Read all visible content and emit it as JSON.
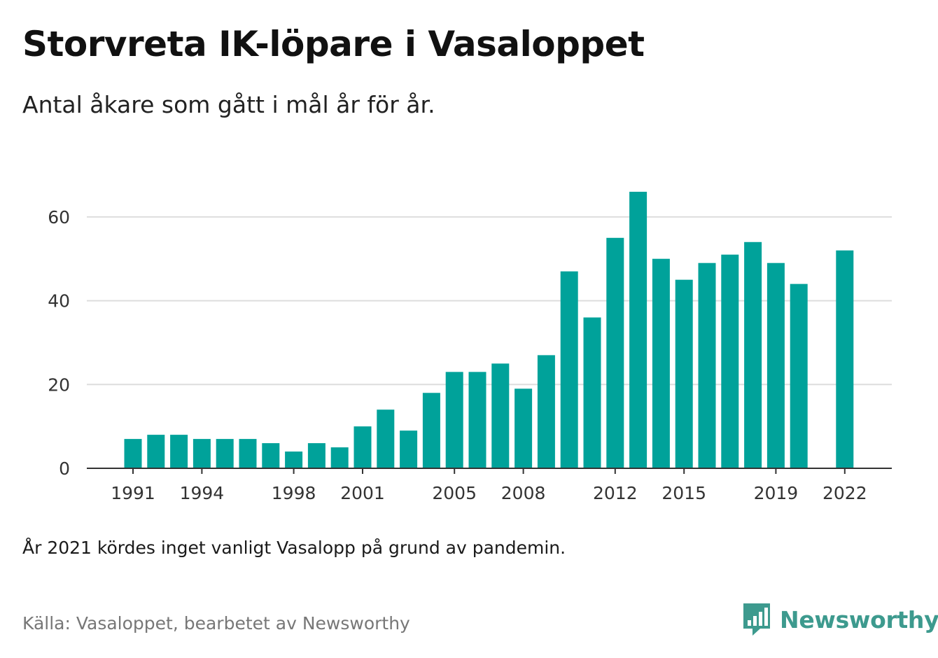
{
  "title": "Storvreta IK-löpare i Vasaloppet",
  "subtitle": "Antal åkare som gått i mål år för år.",
  "note": "År 2021 kördes inget vanligt Vasalopp på grund av pandemin.",
  "source": "Källa: Vasaloppet, bearbetet av Newsworthy",
  "brand": {
    "name": "Newsworthy",
    "icon": "newsworthy-logo-icon"
  },
  "colors": {
    "bar": "#00a29a",
    "grid": "#dddddd",
    "axis": "#333333",
    "brand": "#3d9a8e"
  },
  "chart_data": {
    "type": "bar",
    "x": [
      1991,
      1992,
      1993,
      1994,
      1995,
      1996,
      1997,
      1998,
      1999,
      2000,
      2001,
      2002,
      2003,
      2004,
      2005,
      2006,
      2007,
      2008,
      2009,
      2010,
      2011,
      2012,
      2013,
      2014,
      2015,
      2016,
      2017,
      2018,
      2019,
      2020,
      2021,
      2022
    ],
    "values": [
      7,
      8,
      8,
      7,
      7,
      7,
      6,
      4,
      6,
      5,
      10,
      14,
      9,
      18,
      23,
      23,
      25,
      19,
      27,
      47,
      36,
      55,
      66,
      50,
      45,
      49,
      51,
      54,
      49,
      44,
      null,
      52
    ],
    "x_tick_labels": [
      1991,
      1994,
      1998,
      2001,
      2005,
      2008,
      2012,
      2015,
      2019,
      2022
    ],
    "y_ticks": [
      0,
      20,
      40,
      60
    ],
    "ylim": [
      0,
      70
    ],
    "grid": true,
    "xlabel": "",
    "ylabel": ""
  }
}
